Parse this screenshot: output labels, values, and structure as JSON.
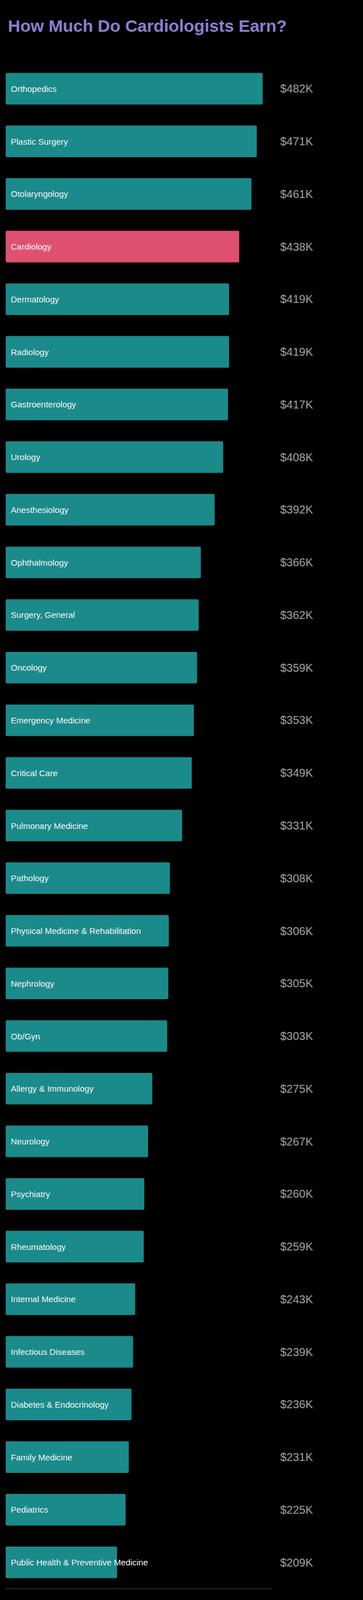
{
  "chart_data": {
    "type": "bar",
    "orientation": "horizontal",
    "title": "How Much Do Cardiologists Earn?",
    "categories": [
      "Orthopedics",
      "Plastic Surgery",
      "Otolaryngology",
      "Cardiology",
      "Dermatology",
      "Radiology",
      "Gastroenterology",
      "Urology",
      "Anesthesiology",
      "Ophthalmology",
      "Surgery, General",
      "Oncology",
      "Emergency Medicine",
      "Critical Care",
      "Pulmonary Medicine",
      "Pathology",
      "Physical Medicine & Rehabilitation",
      "Nephrology",
      "Ob/Gyn",
      "Allergy & Immunology",
      "Neurology",
      "Psychiatry",
      "Rheumatology",
      "Internal Medicine",
      "Infectious Diseases",
      "Diabetes & Endocrinology",
      "Family Medicine",
      "Pediatrics",
      "Public Health & Preventive Medicine"
    ],
    "values": [
      482,
      471,
      461,
      438,
      419,
      419,
      417,
      408,
      392,
      366,
      362,
      359,
      353,
      349,
      331,
      308,
      306,
      305,
      303,
      275,
      267,
      260,
      259,
      243,
      239,
      236,
      231,
      225,
      209
    ],
    "value_labels": [
      "$482K",
      "$471K",
      "$461K",
      "$438K",
      "$419K",
      "$419K",
      "$417K",
      "$408K",
      "$392K",
      "$366K",
      "$362K",
      "$359K",
      "$353K",
      "$349K",
      "$331K",
      "$308K",
      "$306K",
      "$305K",
      "$303K",
      "$275K",
      "$267K",
      "$260K",
      "$259K",
      "$243K",
      "$239K",
      "$236K",
      "$231K",
      "$225K",
      "$209K"
    ],
    "colors": [
      "#1a8a8a",
      "#1a8a8a",
      "#1a8a8a",
      "#e05070",
      "#1a8a8a",
      "#1a8a8a",
      "#1a8a8a",
      "#1a8a8a",
      "#1a8a8a",
      "#1a8a8a",
      "#1a8a8a",
      "#1a8a8a",
      "#1a8a8a",
      "#1a8a8a",
      "#1a8a8a",
      "#1a8a8a",
      "#1a8a8a",
      "#1a8a8a",
      "#1a8a8a",
      "#1a8a8a",
      "#1a8a8a",
      "#1a8a8a",
      "#1a8a8a",
      "#1a8a8a",
      "#1a8a8a",
      "#1a8a8a",
      "#1a8a8a",
      "#1a8a8a",
      "#1a8a8a"
    ],
    "xlim": [
      0,
      500
    ],
    "data_labels": true,
    "tick_labels": false,
    "grid": false
  }
}
